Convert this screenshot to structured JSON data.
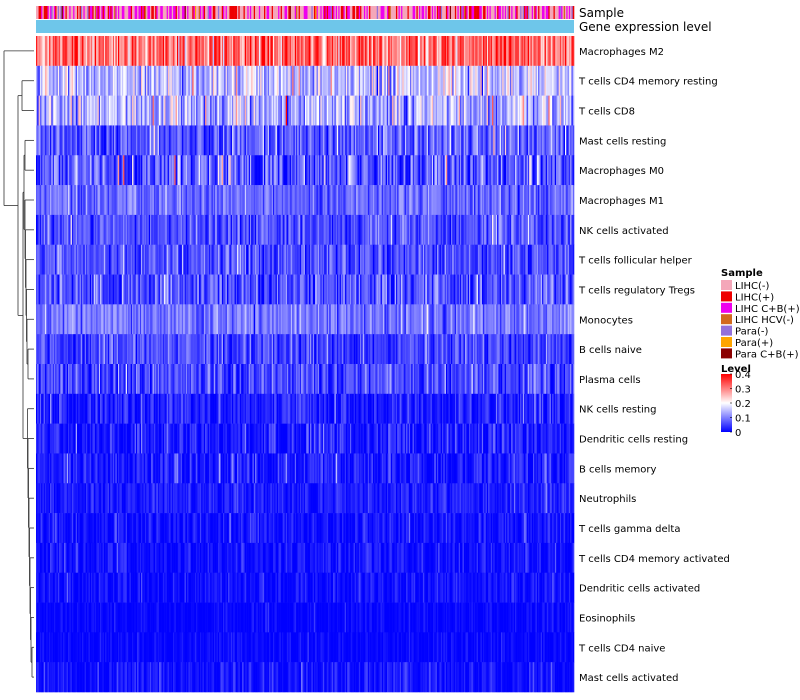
{
  "chart_data": {
    "type": "heatmap",
    "title": "",
    "annotation_tracks": [
      "Sample",
      "Gene expression level"
    ],
    "rows": [
      {
        "name": "Macrophages M2",
        "mean": 0.31,
        "spread": 0.09
      },
      {
        "name": "T cells CD4 memory resting",
        "mean": 0.15,
        "spread": 0.07
      },
      {
        "name": "T cells CD8",
        "mean": 0.14,
        "spread": 0.08
      },
      {
        "name": "Mast cells resting",
        "mean": 0.07,
        "spread": 0.06
      },
      {
        "name": "Macrophages M0",
        "mean": 0.07,
        "spread": 0.08
      },
      {
        "name": "Macrophages M1",
        "mean": 0.08,
        "spread": 0.04
      },
      {
        "name": "NK cells activated",
        "mean": 0.06,
        "spread": 0.05
      },
      {
        "name": "T cells follicular helper",
        "mean": 0.06,
        "spread": 0.05
      },
      {
        "name": "T cells regulatory  Tregs",
        "mean": 0.06,
        "spread": 0.06
      },
      {
        "name": "Monocytes",
        "mean": 0.09,
        "spread": 0.04
      },
      {
        "name": "B cells naive",
        "mean": 0.05,
        "spread": 0.05
      },
      {
        "name": "Plasma cells",
        "mean": 0.05,
        "spread": 0.05
      },
      {
        "name": "NK cells resting",
        "mean": 0.02,
        "spread": 0.04
      },
      {
        "name": "Dendritic cells resting",
        "mean": 0.02,
        "spread": 0.04
      },
      {
        "name": "B cells memory",
        "mean": 0.02,
        "spread": 0.04
      },
      {
        "name": "Neutrophils",
        "mean": 0.02,
        "spread": 0.03
      },
      {
        "name": "T cells gamma delta",
        "mean": 0.01,
        "spread": 0.03
      },
      {
        "name": "T cells CD4 memory activated",
        "mean": 0.01,
        "spread": 0.03
      },
      {
        "name": "Dendritic cells activated",
        "mean": 0.01,
        "spread": 0.03
      },
      {
        "name": "Eosinophils",
        "mean": 0.0,
        "spread": 0.02
      },
      {
        "name": "T cells CD4 naive",
        "mean": 0.0,
        "spread": 0.02
      },
      {
        "name": "Mast cells activated",
        "mean": 0.01,
        "spread": 0.03
      }
    ],
    "sample_count": 420,
    "sample_legend": {
      "title": "Sample",
      "items": [
        {
          "label": "LIHC(-)",
          "color": "#f4a7b9"
        },
        {
          "label": "LIHC(+)",
          "color": "#ee0000"
        },
        {
          "label": "LIHC C+B(+)",
          "color": "#ee00ee"
        },
        {
          "label": "LIHC HCV(-)",
          "color": "#d2691e"
        },
        {
          "label": "Para(-)",
          "color": "#9370db"
        },
        {
          "label": "Para(+)",
          "color": "#ffa500"
        },
        {
          "label": "Para C+B(+)",
          "color": "#8b0000"
        }
      ],
      "weights": [
        0.45,
        0.2,
        0.27,
        0.02,
        0.04,
        0.01,
        0.01
      ]
    },
    "gene_expression_color": "#6ec6ea",
    "level_legend": {
      "title": "Level",
      "ticks": [
        "0.4",
        "0.3",
        "0.2",
        "0.1",
        "0"
      ],
      "range": [
        0,
        0.4
      ],
      "colors": [
        "#0000ff",
        "#ffffff",
        "#ff0000"
      ]
    }
  }
}
